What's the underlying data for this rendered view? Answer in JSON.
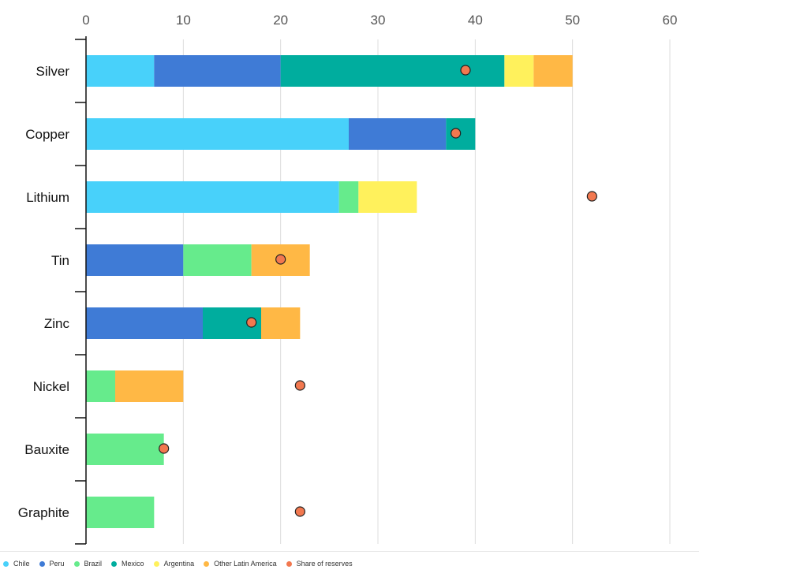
{
  "colors": {
    "Chile": "#48d1fa",
    "Peru": "#3f7bd6",
    "Brazil": "#66eb8c",
    "Mexico": "#00ad9e",
    "Argentina": "#fff15c",
    "Other Latin America": "#ffb845",
    "Share of reserves": "#f2784f",
    "grid": "#dddddd",
    "axis": "#111111"
  },
  "chart_data": {
    "type": "bar",
    "orientation": "horizontal",
    "stacked": true,
    "title": "",
    "xlabel": "",
    "ylabel": "",
    "xlim": [
      0,
      60
    ],
    "x_ticks": [
      0,
      10,
      20,
      30,
      40,
      50,
      60
    ],
    "grid": true,
    "legend_position": "bottom-left",
    "categories": [
      "Silver",
      "Copper",
      "Lithium",
      "Tin",
      "Zinc",
      "Nickel",
      "Bauxite",
      "Graphite"
    ],
    "series": [
      {
        "name": "Chile",
        "values": [
          7,
          27,
          26,
          0,
          0,
          0,
          0,
          0
        ]
      },
      {
        "name": "Peru",
        "values": [
          13,
          10,
          0,
          10,
          12,
          0,
          0,
          0
        ]
      },
      {
        "name": "Brazil",
        "values": [
          0,
          0,
          2,
          7,
          0,
          3,
          8,
          7
        ]
      },
      {
        "name": "Mexico",
        "values": [
          23,
          3,
          0,
          0,
          6,
          0,
          0,
          0
        ]
      },
      {
        "name": "Argentina",
        "values": [
          3,
          0,
          6,
          0,
          0,
          0,
          0,
          0
        ]
      },
      {
        "name": "Other Latin America",
        "values": [
          4,
          0,
          0,
          6,
          4,
          7,
          0,
          0
        ]
      }
    ],
    "markers": {
      "name": "Share of reserves",
      "values": [
        39,
        38,
        52,
        20,
        17,
        22,
        8,
        22
      ]
    }
  },
  "legend": {
    "items": [
      "Chile",
      "Peru",
      "Brazil",
      "Mexico",
      "Argentina",
      "Other Latin America",
      "Share of reserves"
    ]
  }
}
